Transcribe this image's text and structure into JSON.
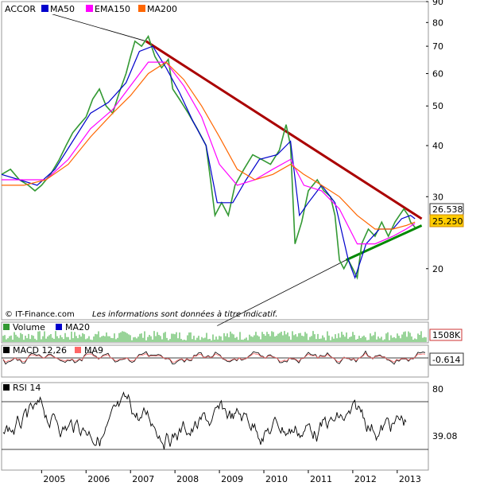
{
  "header": {
    "ticker": "ACCOR",
    "legend": [
      {
        "label": "MA50",
        "color": "#0000cc"
      },
      {
        "label": "EMA150",
        "color": "#ff00ff"
      },
      {
        "label": "MA200",
        "color": "#ff6600"
      }
    ]
  },
  "footer_note": {
    "copyright": "© IT-Finance.com",
    "disclaimer": "Les informations sont données à titre indicatif."
  },
  "price_badges": {
    "ma_value": "26.538",
    "last_price": "25.250",
    "accent": "#ffcc00"
  },
  "volume_panel": {
    "legend": [
      {
        "label": "Volume",
        "color": "#339933"
      },
      {
        "label": "MA20",
        "color": "#0000cc"
      }
    ],
    "value_badge": "1508K"
  },
  "macd_panel": {
    "legend": [
      {
        "label": "MACD 12,26",
        "color": "#000000"
      },
      {
        "label": "MA9",
        "color": "#ff6666"
      }
    ],
    "value_badge": "-0.614"
  },
  "rsi_panel": {
    "legend": [
      {
        "label": "RSI 14",
        "color": "#000000"
      }
    ],
    "tick_top": "80",
    "value_badge": "39.08"
  },
  "chart_data": {
    "type": "line",
    "title": "ACCOR",
    "y_scale": "log",
    "ylim": [
      15,
      90
    ],
    "y_ticks": [
      20,
      30,
      40,
      50,
      60,
      70,
      80,
      90
    ],
    "x_ticks": [
      "2005",
      "2006",
      "2007",
      "2008",
      "2009",
      "2010",
      "2011",
      "2012",
      "2013"
    ],
    "xlim": [
      2004.1,
      2013.7
    ],
    "grid": false,
    "legend_position": "top-left",
    "series": [
      {
        "name": "ACCOR",
        "color": "#339933",
        "points": [
          [
            2004.1,
            34
          ],
          [
            2004.3,
            35
          ],
          [
            2004.5,
            33
          ],
          [
            2004.7,
            32
          ],
          [
            2004.85,
            31
          ],
          [
            2005.0,
            32
          ],
          [
            2005.2,
            34
          ],
          [
            2005.4,
            37
          ],
          [
            2005.55,
            40
          ],
          [
            2005.7,
            43
          ],
          [
            2005.85,
            45
          ],
          [
            2006.0,
            47
          ],
          [
            2006.15,
            52
          ],
          [
            2006.3,
            55
          ],
          [
            2006.45,
            50
          ],
          [
            2006.6,
            48
          ],
          [
            2006.75,
            54
          ],
          [
            2006.9,
            60
          ],
          [
            2007.0,
            66
          ],
          [
            2007.1,
            72
          ],
          [
            2007.25,
            70
          ],
          [
            2007.4,
            74
          ],
          [
            2007.55,
            66
          ],
          [
            2007.7,
            62
          ],
          [
            2007.85,
            65
          ],
          [
            2007.95,
            55
          ],
          [
            2008.1,
            52
          ],
          [
            2008.3,
            48
          ],
          [
            2008.5,
            44
          ],
          [
            2008.7,
            40
          ],
          [
            2008.8,
            33
          ],
          [
            2008.9,
            27
          ],
          [
            2009.05,
            29
          ],
          [
            2009.2,
            27
          ],
          [
            2009.35,
            32
          ],
          [
            2009.55,
            35
          ],
          [
            2009.75,
            38
          ],
          [
            2009.95,
            37
          ],
          [
            2010.15,
            36
          ],
          [
            2010.35,
            39
          ],
          [
            2010.5,
            45
          ],
          [
            2010.6,
            40
          ],
          [
            2010.7,
            23
          ],
          [
            2010.85,
            26
          ],
          [
            2011.0,
            31
          ],
          [
            2011.2,
            33
          ],
          [
            2011.35,
            31
          ],
          [
            2011.5,
            30
          ],
          [
            2011.6,
            27
          ],
          [
            2011.7,
            21
          ],
          [
            2011.8,
            20
          ],
          [
            2011.9,
            21
          ],
          [
            2012.0,
            20
          ],
          [
            2012.1,
            19
          ],
          [
            2012.2,
            23
          ],
          [
            2012.35,
            25
          ],
          [
            2012.5,
            24
          ],
          [
            2012.65,
            26
          ],
          [
            2012.8,
            24
          ],
          [
            2012.95,
            26
          ],
          [
            2013.05,
            27
          ],
          [
            2013.15,
            28
          ],
          [
            2013.25,
            27
          ],
          [
            2013.3,
            26
          ],
          [
            2013.4,
            25.25
          ]
        ]
      },
      {
        "name": "MA50",
        "color": "#0000cc",
        "points": [
          [
            2004.1,
            34
          ],
          [
            2004.5,
            33
          ],
          [
            2004.9,
            32
          ],
          [
            2005.3,
            35
          ],
          [
            2005.7,
            41
          ],
          [
            2006.1,
            48
          ],
          [
            2006.5,
            51
          ],
          [
            2006.9,
            57
          ],
          [
            2007.2,
            68
          ],
          [
            2007.5,
            70
          ],
          [
            2007.8,
            62
          ],
          [
            2008.1,
            54
          ],
          [
            2008.4,
            46
          ],
          [
            2008.7,
            40
          ],
          [
            2008.95,
            29
          ],
          [
            2009.3,
            29
          ],
          [
            2009.6,
            33
          ],
          [
            2009.9,
            37
          ],
          [
            2010.3,
            38
          ],
          [
            2010.6,
            41
          ],
          [
            2010.8,
            27
          ],
          [
            2011.0,
            29
          ],
          [
            2011.3,
            32
          ],
          [
            2011.6,
            29
          ],
          [
            2011.9,
            21
          ],
          [
            2012.05,
            19
          ],
          [
            2012.3,
            23
          ],
          [
            2012.6,
            25
          ],
          [
            2012.9,
            25
          ],
          [
            2013.1,
            26.5
          ],
          [
            2013.3,
            27
          ],
          [
            2013.4,
            26.5
          ]
        ]
      },
      {
        "name": "EMA150",
        "color": "#ff00ff",
        "points": [
          [
            2004.1,
            33
          ],
          [
            2004.6,
            33
          ],
          [
            2005.1,
            33
          ],
          [
            2005.6,
            37
          ],
          [
            2006.1,
            44
          ],
          [
            2006.6,
            49
          ],
          [
            2007.0,
            56
          ],
          [
            2007.4,
            64
          ],
          [
            2007.8,
            64
          ],
          [
            2008.2,
            56
          ],
          [
            2008.6,
            47
          ],
          [
            2009.0,
            36
          ],
          [
            2009.4,
            32
          ],
          [
            2009.8,
            33
          ],
          [
            2010.2,
            35
          ],
          [
            2010.6,
            37
          ],
          [
            2010.9,
            32
          ],
          [
            2011.3,
            31
          ],
          [
            2011.7,
            28
          ],
          [
            2012.1,
            23
          ],
          [
            2012.5,
            23
          ],
          [
            2012.9,
            24
          ],
          [
            2013.2,
            25
          ],
          [
            2013.4,
            25.8
          ]
        ]
      },
      {
        "name": "MA200",
        "color": "#ff6600",
        "points": [
          [
            2004.1,
            32
          ],
          [
            2004.6,
            32
          ],
          [
            2005.1,
            33
          ],
          [
            2005.6,
            36
          ],
          [
            2006.1,
            42
          ],
          [
            2006.6,
            48
          ],
          [
            2007.0,
            53
          ],
          [
            2007.4,
            60
          ],
          [
            2007.8,
            64
          ],
          [
            2008.2,
            58
          ],
          [
            2008.6,
            50
          ],
          [
            2009.0,
            42
          ],
          [
            2009.4,
            35
          ],
          [
            2009.8,
            33
          ],
          [
            2010.2,
            34
          ],
          [
            2010.6,
            36
          ],
          [
            2010.9,
            34
          ],
          [
            2011.3,
            32
          ],
          [
            2011.7,
            30
          ],
          [
            2012.1,
            27
          ],
          [
            2012.5,
            25
          ],
          [
            2012.9,
            25
          ],
          [
            2013.2,
            25.5
          ],
          [
            2013.4,
            26
          ]
        ]
      }
    ],
    "trendlines": [
      {
        "color": "#000000",
        "from": [
          2005.05,
          85
        ],
        "to": [
          2007.35,
          72
        ]
      },
      {
        "color": "#aa0000",
        "from": [
          2007.35,
          72
        ],
        "to": [
          2013.55,
          26.5
        ]
      },
      {
        "color": "#000000",
        "from": [
          2008.95,
          14.5
        ],
        "to": [
          2011.85,
          21
        ]
      },
      {
        "color": "#008800",
        "from": [
          2011.85,
          21
        ],
        "to": [
          2013.55,
          25.5
        ]
      }
    ]
  }
}
